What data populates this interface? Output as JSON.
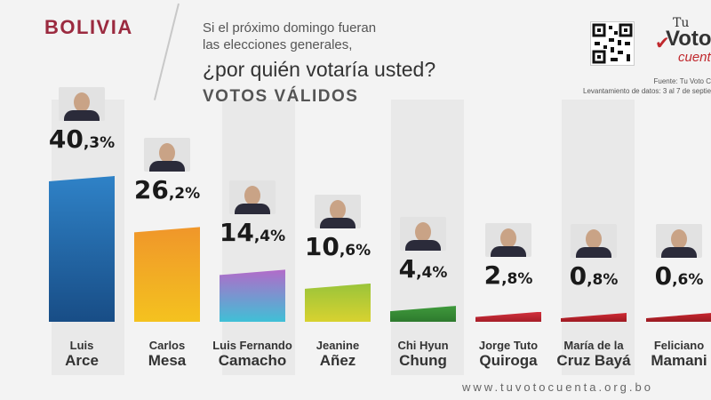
{
  "header": {
    "country": "BOLIVIA",
    "question_line1": "Si el próximo domingo fueran",
    "question_line2": "las elecciones generales,",
    "question_main": "¿por quién votaría usted?",
    "subtitle": "VOTOS VÁLIDOS"
  },
  "source": {
    "line1": "Fuente: Tu Voto C",
    "line2": "Levantamiento de datos: 3 al 7 de septie"
  },
  "logo": {
    "tu": "Tu",
    "voto": "Voto",
    "cuenta": "cuenta"
  },
  "footer": {
    "url": "www.tuvotocuenta.org.bo"
  },
  "chart_data": {
    "type": "bar",
    "title": "¿por quién votaría usted?",
    "subtitle": "VOTOS VÁLIDOS",
    "categories": [
      "Luis Arce",
      "Carlos Mesa",
      "Luis Fernando Camacho",
      "Jeanine Añez",
      "Chi Hyun Chung",
      "Jorge Tuto Quiroga",
      "María de la Cruz Bayá",
      "Feliciano Mamani"
    ],
    "values": [
      40.3,
      26.2,
      14.4,
      10.6,
      4.4,
      2.8,
      0.8,
      0.6
    ],
    "value_labels_int": [
      "40",
      "26",
      "14",
      "10",
      "4",
      "2",
      "0",
      "0"
    ],
    "value_labels_dec": [
      ",3%",
      ",2%",
      ",4%",
      ",6%",
      ",4%",
      ",8%",
      ",8%",
      ",6%"
    ],
    "name_first": [
      "Luis",
      "Carlos",
      "Luis Fernando",
      "Jeanine",
      "Chi Hyun",
      "Jorge Tuto",
      "María de la",
      "Feliciano"
    ],
    "name_last": [
      "Arce",
      "Mesa",
      "Camacho",
      "Añez",
      "Chung",
      "Quiroga",
      "Cruz Bayá",
      "Mamani"
    ],
    "colors": [
      "#2f82c7",
      "#f0962a",
      "#b36ac9",
      "#9ac43a",
      "#3f9a3c",
      "#d2313d",
      "#cf2b35",
      "#c8262f"
    ],
    "colors_alt": [
      "#184d86",
      "#f4c21f",
      "#3fc0d6",
      "#d8d230",
      "#2e7a2e",
      "#a61d28",
      "#9e1a22",
      "#9a1b22"
    ],
    "ylim": [
      0,
      45
    ]
  }
}
